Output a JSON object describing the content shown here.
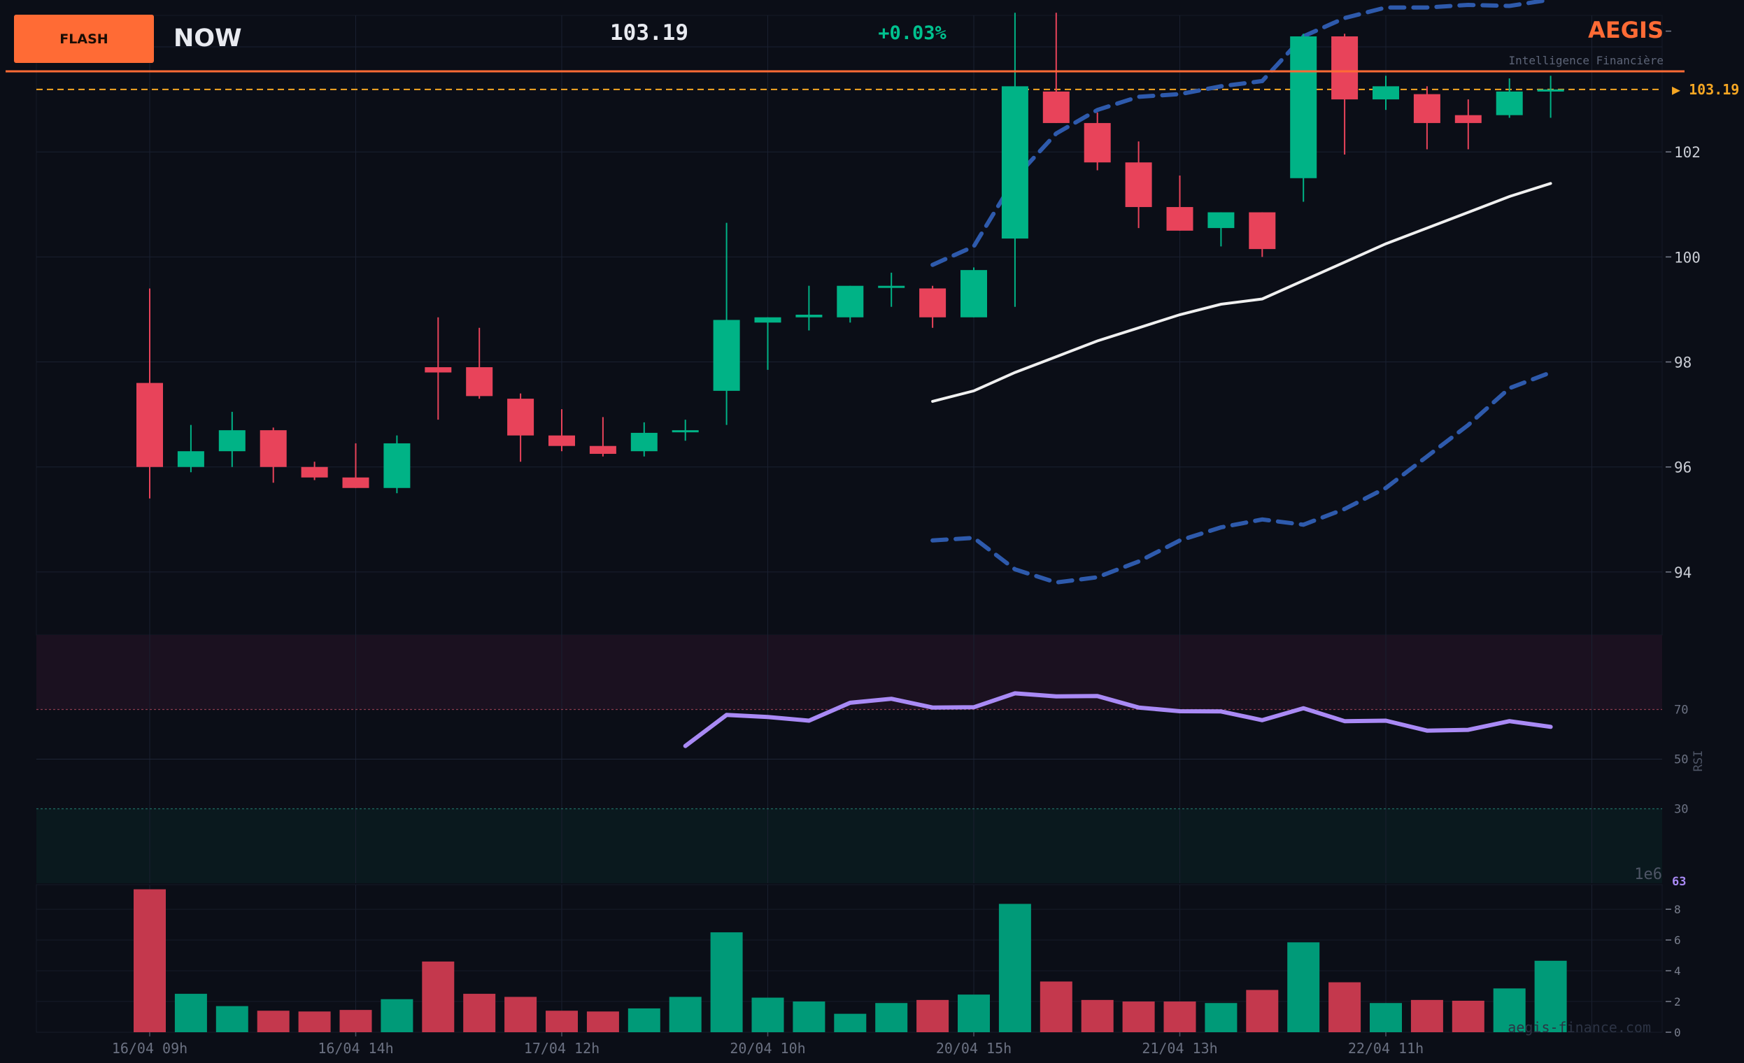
{
  "header": {
    "badge": "FLASH",
    "ticker": "NOW",
    "price": "103.19",
    "change": "+0.03%",
    "brand": "AEGIS",
    "tagline": "Intelligence Financière"
  },
  "footer": {
    "watermark": "aegis-finance.com"
  },
  "colors": {
    "background": "#0b0e17",
    "up": "#00b386",
    "down": "#e8435a",
    "band": "#2e5aac",
    "sma": "#f0f0f0",
    "rsi": "#a98af5",
    "accent": "#ff6b35",
    "last_price": "#f5a623",
    "axis_text": "#7a7f8e"
  },
  "chart_data": [
    {
      "type": "candlestick",
      "x_labels": [
        "16/04 09h",
        "16/04 14h",
        "17/04 12h",
        "20/04 10h",
        "20/04 15h",
        "21/04 13h",
        "22/04 11h"
      ],
      "x_label_index": [
        0,
        5,
        10,
        15,
        20,
        25,
        30
      ],
      "y_ticks": [
        94,
        96,
        98,
        100,
        102
      ],
      "ylim": [
        92.8,
        104.6
      ],
      "last_price": 103.19,
      "last_price_label": "▶ 103.19",
      "open": [
        97.6,
        96.0,
        96.3,
        96.7,
        96.0,
        95.8,
        95.6,
        97.9,
        97.9,
        97.3,
        96.6,
        96.4,
        96.3,
        96.7,
        97.45,
        98.75,
        98.85,
        98.85,
        99.45,
        99.4,
        98.85,
        100.35,
        103.15,
        102.55,
        101.8,
        100.95,
        100.55,
        100.85,
        101.5,
        104.2,
        103.0,
        103.1,
        102.7,
        102.7,
        103.15
      ],
      "high": [
        99.4,
        96.8,
        97.05,
        96.75,
        96.1,
        96.45,
        96.6,
        98.85,
        98.65,
        97.4,
        97.1,
        96.95,
        96.85,
        96.9,
        100.65,
        98.85,
        99.45,
        99.45,
        99.7,
        99.45,
        99.8,
        104.65,
        104.65,
        102.75,
        102.2,
        101.55,
        100.85,
        100.85,
        104.25,
        104.25,
        103.45,
        103.25,
        103.0,
        103.4,
        103.45
      ],
      "low": [
        95.4,
        95.9,
        96.0,
        95.7,
        95.75,
        95.6,
        95.5,
        96.9,
        97.3,
        96.1,
        96.3,
        96.2,
        96.2,
        96.5,
        96.8,
        97.85,
        98.6,
        98.75,
        99.05,
        98.65,
        98.85,
        99.05,
        102.55,
        101.65,
        100.55,
        100.5,
        100.2,
        100.0,
        101.05,
        101.95,
        102.8,
        102.05,
        102.05,
        102.65,
        102.65
      ],
      "close": [
        96.0,
        96.3,
        96.7,
        96.0,
        95.8,
        95.6,
        96.45,
        97.8,
        97.35,
        96.6,
        96.4,
        96.25,
        96.65,
        96.7,
        98.8,
        98.85,
        98.9,
        99.45,
        99.45,
        98.85,
        99.75,
        103.25,
        102.55,
        101.8,
        100.95,
        100.5,
        100.85,
        100.15,
        104.2,
        103.0,
        103.25,
        102.55,
        102.55,
        103.15,
        103.19
      ],
      "bollinger": {
        "start_index": 19,
        "upper": [
          99.85,
          100.2,
          101.5,
          102.35,
          102.8,
          103.05,
          103.1,
          103.25,
          103.35,
          104.2,
          104.55,
          104.75,
          104.75,
          104.8,
          104.78,
          104.9
        ],
        "middle": [
          97.25,
          97.45,
          97.8,
          98.1,
          98.4,
          98.65,
          98.9,
          99.1,
          99.2,
          99.55,
          99.9,
          100.25,
          100.55,
          100.85,
          101.15,
          101.4
        ],
        "lower": [
          94.6,
          94.65,
          94.05,
          93.8,
          93.9,
          94.2,
          94.6,
          94.85,
          95.0,
          94.9,
          95.2,
          95.6,
          96.2,
          96.8,
          97.5,
          97.8
        ]
      }
    },
    {
      "type": "line",
      "name": "RSI",
      "axis_label": "RSI",
      "y_ticks": [
        30,
        50,
        70
      ],
      "ylim": [
        0,
        100
      ],
      "start_index": 13,
      "values": [
        55.3,
        67.8,
        67.0,
        65.5,
        72.7,
        74.3,
        70.8,
        70.9,
        76.5,
        75.3,
        75.4,
        70.8,
        69.3,
        69.2,
        65.7,
        70.5,
        65.3,
        65.5,
        61.5,
        61.8,
        65.3,
        63.0
      ],
      "last_value_label": "63"
    },
    {
      "type": "bar",
      "name": "Volume",
      "scale_label": "1e6",
      "y_ticks": [
        0,
        2,
        4,
        6,
        8
      ],
      "ylim": [
        0,
        9.6
      ],
      "values": [
        9.3,
        2.5,
        1.7,
        1.4,
        1.35,
        1.45,
        2.15,
        4.6,
        2.5,
        2.3,
        1.4,
        1.35,
        1.55,
        2.3,
        6.5,
        2.25,
        2.0,
        1.2,
        1.9,
        2.1,
        2.45,
        8.35,
        3.3,
        2.1,
        2.0,
        2.0,
        1.9,
        2.75,
        5.85,
        3.25,
        1.9,
        2.1,
        2.05,
        2.85,
        4.65
      ]
    }
  ]
}
